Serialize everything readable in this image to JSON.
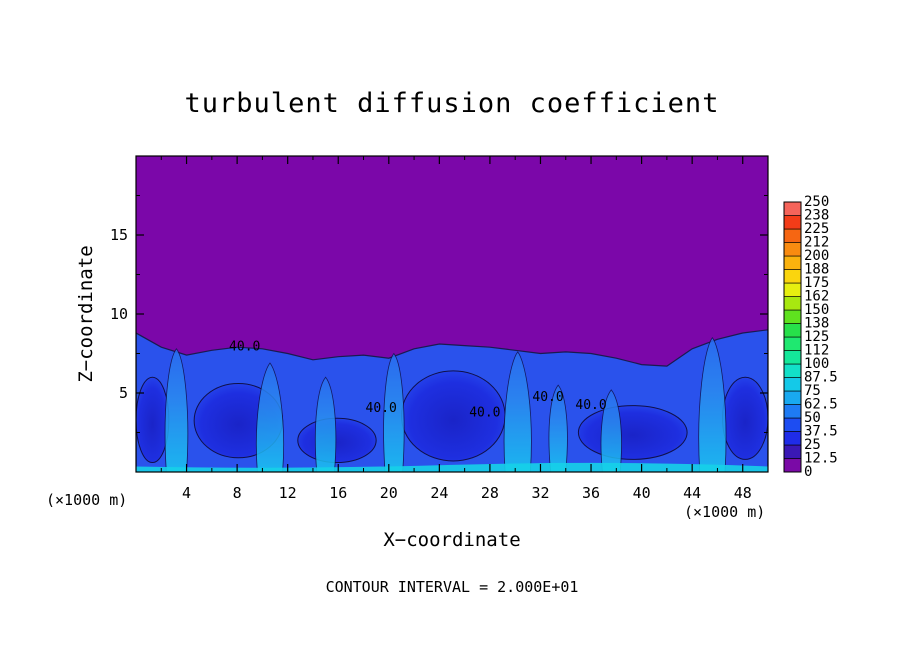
{
  "chart_data": {
    "type": "heatmap",
    "title": "turbulent diffusion coefficient",
    "xlabel": "X−coordinate",
    "ylabel": "Z−coordinate",
    "x_unit_left": "(×1000 m)",
    "x_unit_right": "(×1000 m)",
    "footnote": "CONTOUR INTERVAL = 2.000E+01",
    "xlim": [
      0,
      50
    ],
    "ylim": [
      0,
      20
    ],
    "x_ticks": [
      4,
      8,
      12,
      16,
      20,
      24,
      28,
      32,
      36,
      40,
      44,
      48
    ],
    "x_tick_labels": [
      "4",
      "8",
      "12",
      "16",
      "20",
      "24",
      "28",
      "32",
      "36",
      "40",
      "44",
      "48"
    ],
    "y_ticks": [
      5,
      10,
      15
    ],
    "y_tick_labels": [
      "5",
      "10",
      "15"
    ],
    "contour_labels": [
      {
        "text": "40.0",
        "x": 8.6,
        "z": 7.7
      },
      {
        "text": "40.0",
        "x": 27.6,
        "z": 3.5
      },
      {
        "text": "40.0",
        "x": 32.6,
        "z": 4.5
      },
      {
        "text": "40.0",
        "x": 36.0,
        "z": 4.0
      },
      {
        "text": "40.0",
        "x": 19.4,
        "z": 3.8
      }
    ],
    "colorbar": {
      "levels": [
        0,
        12.5,
        25,
        37.5,
        50,
        62.5,
        75,
        87.5,
        100,
        112,
        125,
        138,
        150,
        162,
        175,
        188,
        200,
        212,
        225,
        238,
        250
      ],
      "labels": [
        "0",
        "12.5",
        "25",
        "37.5",
        "50",
        "62.5",
        "75",
        "87.5",
        "100",
        "112",
        "125",
        "138",
        "150",
        "162",
        "175",
        "188",
        "200",
        "212",
        "225",
        "238",
        "250"
      ],
      "colors": [
        "#7a0aa6",
        "#3a18b5",
        "#1f2ce8",
        "#1d4df2",
        "#1e7bf4",
        "#19a9f0",
        "#14c9e8",
        "#12e0c8",
        "#14e89a",
        "#1fe870",
        "#27e04a",
        "#5fe21f",
        "#a8e810",
        "#e6ef10",
        "#fad50e",
        "#fab20e",
        "#f98b10",
        "#f66612",
        "#f33c18",
        "#f5645a",
        "#f59a94"
      ]
    },
    "background_value_color": "#7b07a9",
    "turbulent_layer_top_profile": [
      [
        0,
        8.8
      ],
      [
        2,
        7.9
      ],
      [
        4,
        7.4
      ],
      [
        6,
        7.7
      ],
      [
        8,
        7.9
      ],
      [
        10,
        7.8
      ],
      [
        12,
        7.5
      ],
      [
        14,
        7.1
      ],
      [
        16,
        7.3
      ],
      [
        18,
        7.4
      ],
      [
        20,
        7.2
      ],
      [
        22,
        7.8
      ],
      [
        24,
        8.1
      ],
      [
        26,
        8.0
      ],
      [
        28,
        7.9
      ],
      [
        30,
        7.7
      ],
      [
        32,
        7.5
      ],
      [
        34,
        7.6
      ],
      [
        36,
        7.5
      ],
      [
        38,
        7.2
      ],
      [
        40,
        6.8
      ],
      [
        42,
        6.7
      ],
      [
        44,
        7.8
      ],
      [
        46,
        8.4
      ],
      [
        48,
        8.8
      ],
      [
        50,
        9.0
      ]
    ],
    "updraft_plumes": [
      {
        "x": 3.2,
        "width": 1.6,
        "top": 7.8
      },
      {
        "x": 10.6,
        "width": 2.0,
        "top": 6.9
      },
      {
        "x": 15.0,
        "width": 1.4,
        "top": 6.0
      },
      {
        "x": 20.4,
        "width": 1.4,
        "top": 7.5
      },
      {
        "x": 30.2,
        "width": 2.0,
        "top": 7.6
      },
      {
        "x": 33.4,
        "width": 1.2,
        "top": 5.5
      },
      {
        "x": 37.6,
        "width": 1.4,
        "top": 5.2
      },
      {
        "x": 45.6,
        "width": 2.0,
        "top": 8.5
      }
    ]
  }
}
